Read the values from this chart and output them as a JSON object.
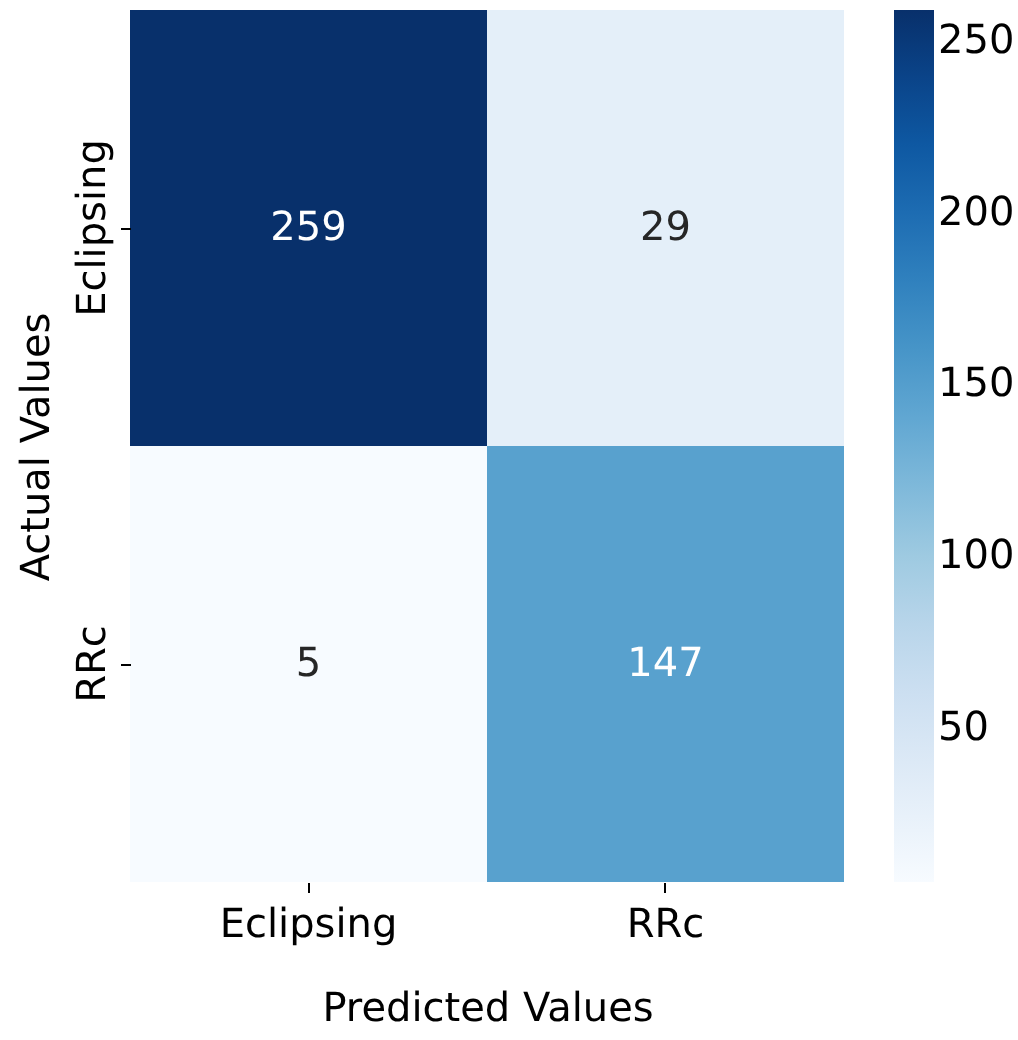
{
  "chart_data": {
    "type": "heatmap",
    "xlabel": "Predicted Values",
    "ylabel": "Actual Values",
    "categories": [
      "Eclipsing",
      "RRc"
    ],
    "y_categories": [
      "Eclipsing",
      "RRc"
    ],
    "cells": [
      [
        259,
        29
      ],
      [
        5,
        147
      ]
    ],
    "clim": [
      5,
      259
    ],
    "cticks": [
      50,
      100,
      150,
      200,
      250
    ],
    "data_labels": true
  }
}
